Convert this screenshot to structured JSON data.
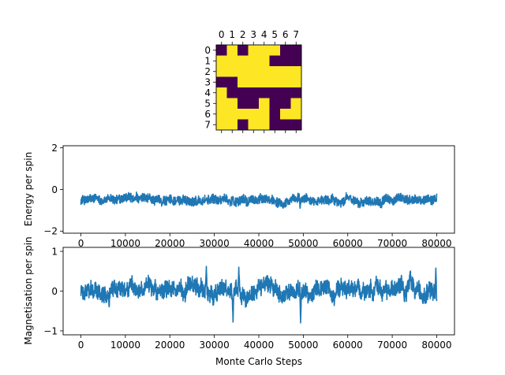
{
  "colors": {
    "line": "#1f77b4",
    "heatmap_high": "#fde725",
    "heatmap_low": "#440154",
    "axes": "#000000"
  },
  "chart_data": [
    {
      "type": "heatmap",
      "title": "",
      "x_ticks": [
        "0",
        "1",
        "2",
        "3",
        "4",
        "5",
        "6",
        "7"
      ],
      "y_ticks": [
        "0",
        "1",
        "2",
        "3",
        "4",
        "5",
        "6",
        "7"
      ],
      "x_tick_position": "top",
      "value_range": [
        -1,
        1
      ],
      "colormap": "viridis",
      "matrix": [
        [
          -1,
          1,
          -1,
          1,
          1,
          1,
          -1,
          -1
        ],
        [
          1,
          1,
          1,
          1,
          1,
          -1,
          -1,
          -1
        ],
        [
          1,
          1,
          1,
          1,
          1,
          1,
          1,
          1
        ],
        [
          -1,
          -1,
          1,
          1,
          1,
          1,
          1,
          1
        ],
        [
          1,
          -1,
          -1,
          -1,
          -1,
          -1,
          -1,
          -1
        ],
        [
          1,
          1,
          -1,
          -1,
          1,
          -1,
          -1,
          1
        ],
        [
          1,
          1,
          1,
          1,
          1,
          -1,
          1,
          1
        ],
        [
          1,
          1,
          -1,
          1,
          1,
          -1,
          -1,
          -1
        ]
      ]
    },
    {
      "type": "line",
      "xlabel": "",
      "ylabel": "Energy per spin",
      "xlim": [
        -4000,
        84000
      ],
      "ylim": [
        -2.1,
        2.1
      ],
      "x_ticks": [
        0,
        10000,
        20000,
        30000,
        40000,
        50000,
        60000,
        70000,
        80000
      ],
      "x_tick_labels": [
        "0",
        "10000",
        "20000",
        "30000",
        "40000",
        "50000",
        "60000",
        "70000",
        "80000"
      ],
      "y_ticks": [
        -2,
        0,
        2
      ],
      "y_tick_labels": [
        "−2",
        "0",
        "2"
      ],
      "grid": false,
      "series": [
        {
          "x_start": 0,
          "x_end": 80000,
          "mean": -0.5,
          "band_min": -0.9,
          "band_max": 0.05,
          "extremes": [
            {
              "x": 34500,
              "y": -0.75
            },
            {
              "x": 49300,
              "y": -0.95
            },
            {
              "x": 37500,
              "y": -0.8
            },
            {
              "x": 5000,
              "y": -0.65
            }
          ]
        }
      ]
    },
    {
      "type": "line",
      "xlabel": "Monte Carlo Steps",
      "ylabel": "Magnetisation per spin",
      "xlim": [
        -4000,
        84000
      ],
      "ylim": [
        -1.1,
        1.1
      ],
      "x_ticks": [
        0,
        10000,
        20000,
        30000,
        40000,
        50000,
        60000,
        70000,
        80000
      ],
      "x_tick_labels": [
        "0",
        "10000",
        "20000",
        "30000",
        "40000",
        "50000",
        "60000",
        "70000",
        "80000"
      ],
      "y_ticks": [
        -1,
        0,
        1
      ],
      "y_tick_labels": [
        "−1",
        "0",
        "1"
      ],
      "grid": false,
      "series": [
        {
          "x_start": 0,
          "x_end": 80000,
          "mean": 0.0,
          "band_min": -0.8,
          "band_max": 0.65,
          "extremes": [
            {
              "x": 28200,
              "y": 0.62
            },
            {
              "x": 35500,
              "y": 0.6
            },
            {
              "x": 34200,
              "y": -0.78
            },
            {
              "x": 49400,
              "y": -0.82
            },
            {
              "x": 79800,
              "y": 0.58
            }
          ]
        }
      ]
    }
  ]
}
